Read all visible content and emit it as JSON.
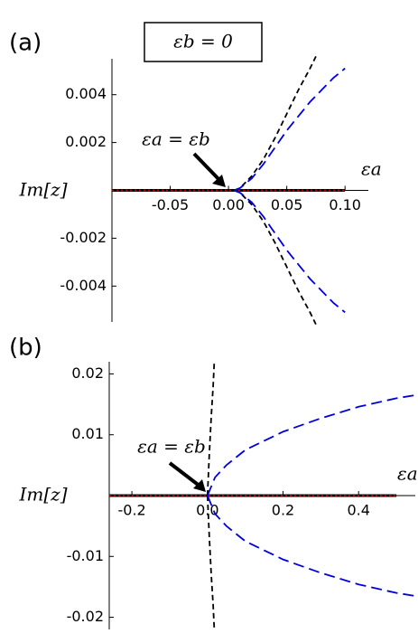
{
  "chart_data": [
    {
      "type": "line",
      "panel_label": "(a)",
      "title": "εb = 0",
      "annotation": "εa = εb",
      "x_label": "εa",
      "y_label": "Im[z]",
      "xlim": [
        -0.1,
        0.12
      ],
      "ylim": [
        -0.0055,
        0.0055
      ],
      "xticks": [
        -0.05,
        {
          "value": 0,
          "label": "0.00"
        },
        0.05,
        {
          "value": 0.1,
          "label": "0.10"
        }
      ],
      "yticks": [
        -0.004,
        -0.002,
        0.002,
        0.004
      ],
      "series": [
        {
          "color": "#000000",
          "dash": "solid",
          "x": [
            -0.1,
            0.1
          ],
          "values": [
            0,
            0
          ]
        },
        {
          "color": "#cc0000",
          "dash": "dotted",
          "x": [
            -0.1,
            0.1
          ],
          "values": [
            0,
            0
          ]
        },
        {
          "color": "#000000",
          "dash": "dashed",
          "x": [
            0.005,
            0.01,
            0.02,
            0.03,
            0.04,
            0.05,
            0.06,
            0.07,
            0.075
          ],
          "values": [
            0,
            0.0001,
            0.0006,
            0.0013,
            0.0022,
            0.0032,
            0.0042,
            0.0051,
            0.0056
          ]
        },
        {
          "color": "#000000",
          "dash": "dashed",
          "x": [
            0.005,
            0.01,
            0.02,
            0.03,
            0.04,
            0.05,
            0.06,
            0.07,
            0.075
          ],
          "values": [
            0,
            -0.0001,
            -0.0006,
            -0.0013,
            -0.0022,
            -0.0032,
            -0.0042,
            -0.0051,
            -0.0056
          ]
        },
        {
          "color": "#0000dd",
          "dash": "long-dashed",
          "x": [
            0.005,
            0.01,
            0.02,
            0.03,
            0.04,
            0.05,
            0.06,
            0.07,
            0.08,
            0.09,
            0.1
          ],
          "values": [
            0,
            0.0001,
            0.0005,
            0.0011,
            0.0018,
            0.0025,
            0.0031,
            0.0037,
            0.0042,
            0.0047,
            0.0051
          ]
        },
        {
          "color": "#0000dd",
          "dash": "long-dashed",
          "x": [
            0.005,
            0.01,
            0.02,
            0.03,
            0.04,
            0.05,
            0.06,
            0.07,
            0.08,
            0.09,
            0.1
          ],
          "values": [
            0,
            -0.0001,
            -0.0005,
            -0.0011,
            -0.0018,
            -0.0025,
            -0.0031,
            -0.0037,
            -0.0042,
            -0.0047,
            -0.0051
          ]
        }
      ]
    },
    {
      "type": "line",
      "panel_label": "(b)",
      "annotation": "εa = εb",
      "x_label": "εa",
      "y_label": "Im[z]",
      "xlim": [
        -0.26,
        0.55
      ],
      "ylim": [
        -0.022,
        0.022
      ],
      "xticks": [
        -0.2,
        {
          "value": 0,
          "label": "0.0"
        },
        0.2,
        0.4
      ],
      "yticks": [
        -0.02,
        -0.01,
        0.01,
        0.02
      ],
      "series": [
        {
          "color": "#000000",
          "dash": "solid",
          "x": [
            -0.26,
            0.5
          ],
          "values": [
            0,
            0
          ]
        },
        {
          "color": "#cc0000",
          "dash": "dotted",
          "x": [
            -0.26,
            0.5
          ],
          "values": [
            0,
            0
          ]
        },
        {
          "color": "#000000",
          "dash": "dashed",
          "x": [
            0,
            0.005,
            0.01,
            0.015,
            0.018
          ],
          "values": [
            0,
            0.007,
            0.013,
            0.018,
            0.022
          ]
        },
        {
          "color": "#000000",
          "dash": "dashed",
          "x": [
            0,
            0.005,
            0.01,
            0.015,
            0.018
          ],
          "values": [
            0,
            -0.007,
            -0.013,
            -0.018,
            -0.022
          ]
        },
        {
          "color": "#0000dd",
          "dash": "long-dashed",
          "x": [
            0,
            0.02,
            0.05,
            0.1,
            0.15,
            0.2,
            0.3,
            0.4,
            0.5,
            0.55
          ],
          "values": [
            0,
            0.003,
            0.005,
            0.0075,
            0.009,
            0.0105,
            0.0127,
            0.0146,
            0.016,
            0.0165
          ]
        },
        {
          "color": "#0000dd",
          "dash": "long-dashed",
          "x": [
            0,
            0.02,
            0.05,
            0.1,
            0.15,
            0.2,
            0.3,
            0.4,
            0.5,
            0.55
          ],
          "values": [
            0,
            -0.003,
            -0.005,
            -0.0075,
            -0.009,
            -0.0105,
            -0.0127,
            -0.0146,
            -0.016,
            -0.0165
          ]
        }
      ]
    }
  ]
}
